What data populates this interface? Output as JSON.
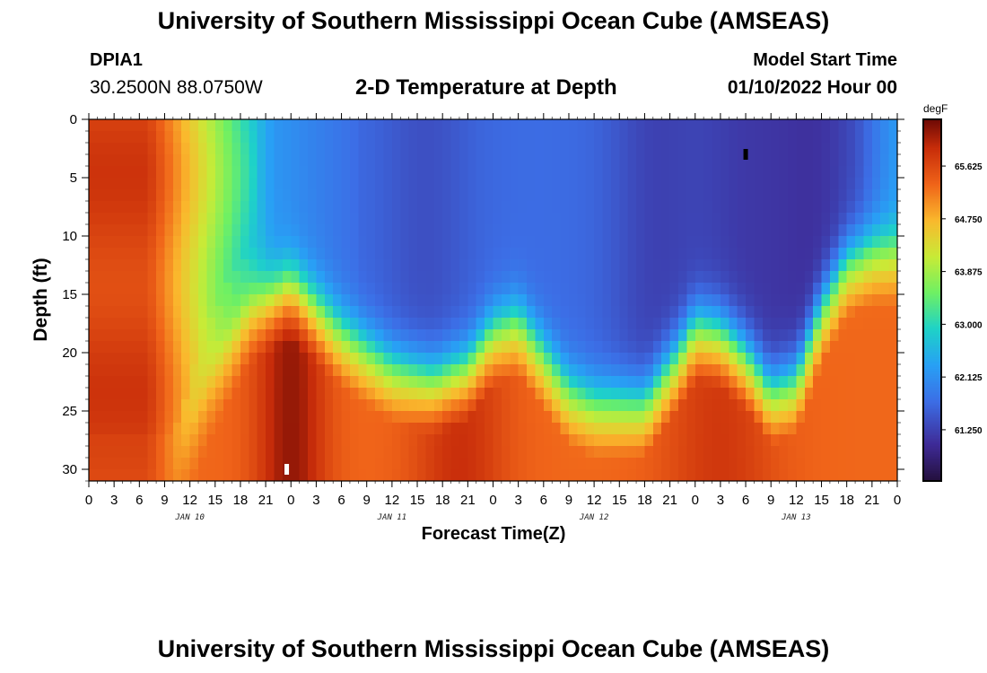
{
  "header": {
    "title": "University of Southern Mississippi Ocean Cube (AMSEAS)",
    "station_id": "DPIA1",
    "coordinates": "30.2500N  88.0750W",
    "subtitle": "2-D Temperature at Depth",
    "start_label": "Model Start Time",
    "start_value": "01/10/2022 Hour 00"
  },
  "footer": {
    "title": "University of Southern Mississippi Ocean Cube (AMSEAS)"
  },
  "chart_data": {
    "type": "heatmap",
    "title": "2-D Temperature at Depth",
    "xlabel": "Forecast Time(Z)",
    "ylabel": "Depth (ft)",
    "x_hours_range": [
      0,
      96
    ],
    "xticks_hours": [
      0,
      3,
      6,
      9,
      12,
      15,
      18,
      21,
      24,
      27,
      30,
      33,
      36,
      39,
      42,
      45,
      48,
      51,
      54,
      57,
      60,
      63,
      66,
      69,
      72,
      75,
      78,
      81,
      84,
      87,
      90,
      93,
      96
    ],
    "xtick_labels": [
      "0",
      "3",
      "6",
      "9",
      "12",
      "15",
      "18",
      "21",
      "0",
      "3",
      "6",
      "9",
      "12",
      "15",
      "18",
      "21",
      "0",
      "3",
      "6",
      "9",
      "12",
      "15",
      "18",
      "21",
      "0",
      "3",
      "6",
      "9",
      "12",
      "15",
      "18",
      "21",
      "0"
    ],
    "day_labels": [
      {
        "label": "JAN 10",
        "hour": 12
      },
      {
        "label": "JAN 11",
        "hour": 36
      },
      {
        "label": "JAN 12",
        "hour": 60
      },
      {
        "label": "JAN 13",
        "hour": 84
      }
    ],
    "ylim": [
      0,
      31
    ],
    "yticks": [
      0,
      5,
      10,
      15,
      20,
      25,
      30
    ],
    "ytick_labels": [
      "0",
      "5",
      "10",
      "15",
      "20",
      "25",
      "30"
    ],
    "colorbar": {
      "unit": "degF",
      "range": [
        60.4,
        66.4
      ],
      "tick_values": [
        65.625,
        64.75,
        63.875,
        63.0,
        62.125,
        61.25
      ],
      "tick_labels": [
        "65.625",
        "64.750",
        "63.875",
        "63.000",
        "62.125",
        "61.250"
      ]
    },
    "mixed_layer_depth_ft": [
      {
        "hour": 0,
        "depth": 31
      },
      {
        "hour": 10,
        "depth": 31
      },
      {
        "hour": 14,
        "depth": 22
      },
      {
        "hour": 19,
        "depth": 15
      },
      {
        "hour": 24,
        "depth": 13
      },
      {
        "hour": 30,
        "depth": 17
      },
      {
        "hour": 36,
        "depth": 20
      },
      {
        "hour": 41,
        "depth": 21
      },
      {
        "hour": 45,
        "depth": 20
      },
      {
        "hour": 48,
        "depth": 17
      },
      {
        "hour": 51,
        "depth": 16
      },
      {
        "hour": 54,
        "depth": 19
      },
      {
        "hour": 57,
        "depth": 22
      },
      {
        "hour": 60,
        "depth": 23
      },
      {
        "hour": 66,
        "depth": 23
      },
      {
        "hour": 70,
        "depth": 19
      },
      {
        "hour": 72,
        "depth": 16.5
      },
      {
        "hour": 75,
        "depth": 17
      },
      {
        "hour": 78,
        "depth": 19
      },
      {
        "hour": 81,
        "depth": 22
      },
      {
        "hour": 84,
        "depth": 21
      },
      {
        "hour": 87,
        "depth": 15
      },
      {
        "hour": 90,
        "depth": 11
      },
      {
        "hour": 93,
        "depth": 10
      },
      {
        "hour": 96,
        "depth": 10
      }
    ],
    "markers": [
      {
        "hour": 23.5,
        "depth": 30,
        "color": "#ffffff"
      },
      {
        "hour": 78,
        "depth": 3,
        "color": "#000000"
      }
    ]
  }
}
